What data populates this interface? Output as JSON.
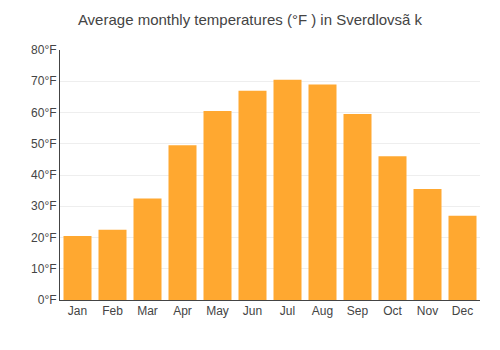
{
  "chart_data": {
    "type": "bar",
    "title": "Average monthly temperatures (°F ) in Sverdlovsã k",
    "categories": [
      "Jan",
      "Feb",
      "Mar",
      "Apr",
      "May",
      "Jun",
      "Jul",
      "Aug",
      "Sep",
      "Oct",
      "Nov",
      "Dec"
    ],
    "values": [
      20.5,
      22.5,
      32.5,
      49.5,
      60.5,
      67,
      70.5,
      69,
      59.5,
      46,
      35.5,
      27
    ],
    "color": "#FFA830",
    "ylim": [
      0,
      80
    ],
    "yticks": [
      {
        "value": 0,
        "label": "0°F"
      },
      {
        "value": 10,
        "label": "10°F"
      },
      {
        "value": 20,
        "label": "20°F"
      },
      {
        "value": 30,
        "label": "30°F"
      },
      {
        "value": 40,
        "label": "40°F"
      },
      {
        "value": 50,
        "label": "50°F"
      },
      {
        "value": 60,
        "label": "60°F"
      },
      {
        "value": 70,
        "label": "70°F"
      },
      {
        "value": 80,
        "label": "80°F"
      }
    ],
    "grid": true
  }
}
